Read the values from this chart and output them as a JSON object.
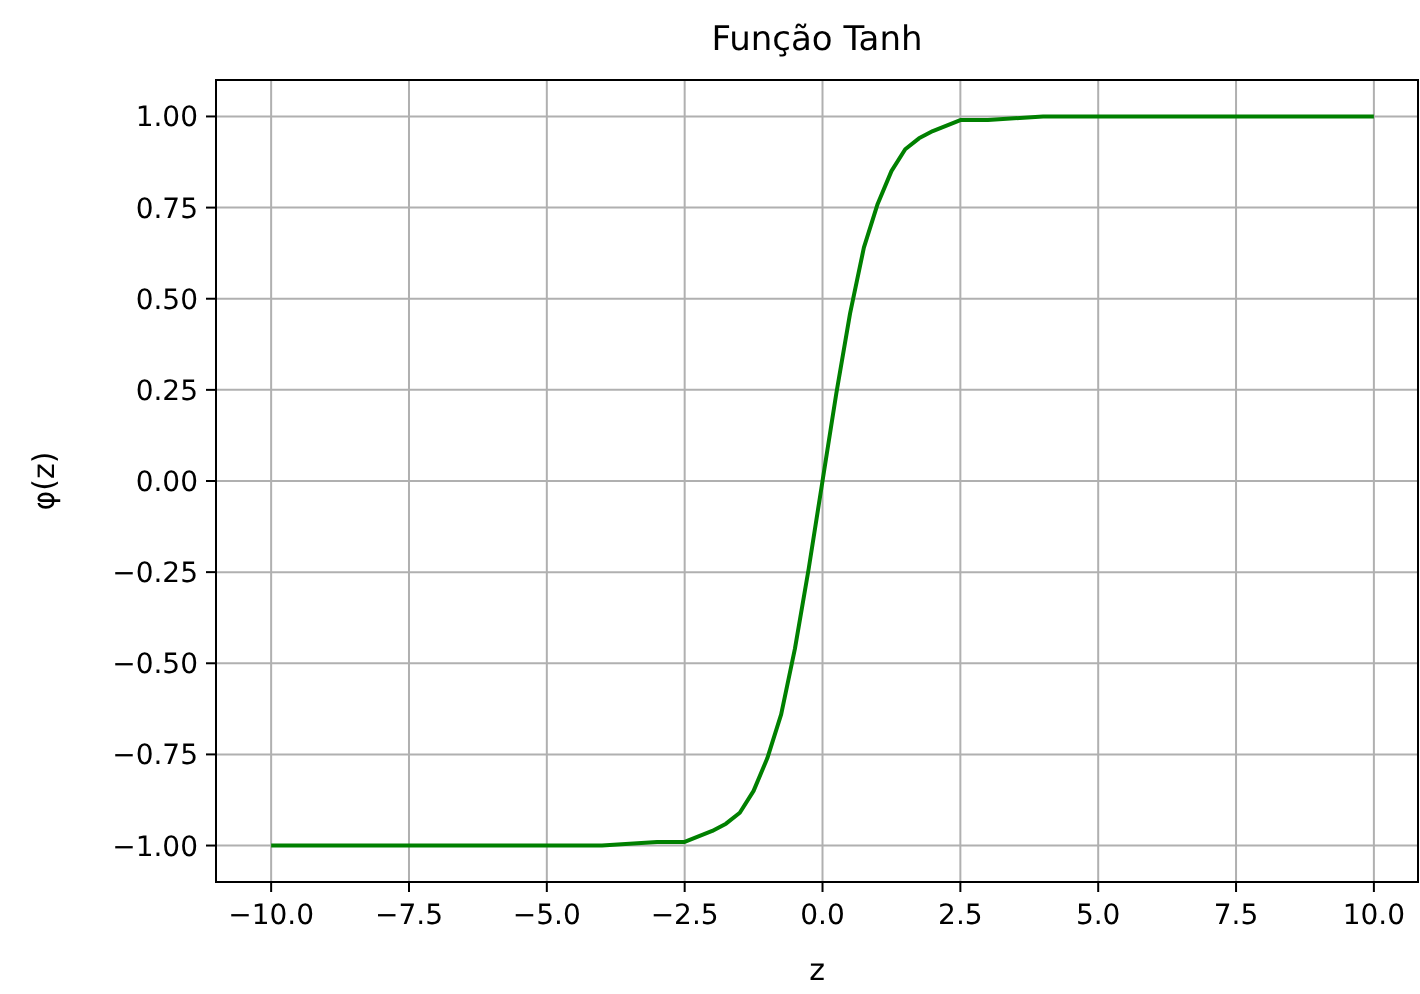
{
  "chart_data": {
    "type": "line",
    "title": "Função Tanh",
    "xlabel": "z",
    "ylabel": "φ(z)",
    "x": [
      -10,
      -7.5,
      -5,
      -4,
      -3,
      -2.5,
      -2,
      -1.75,
      -1.5,
      -1.25,
      -1,
      -0.75,
      -0.5,
      -0.25,
      0,
      0.25,
      0.5,
      0.75,
      1,
      1.25,
      1.5,
      1.75,
      2,
      2.5,
      3,
      4,
      5,
      7.5,
      10
    ],
    "series": [
      {
        "color": "#008000",
        "values": [
          -1,
          -1,
          -1,
          -1,
          -0.99,
          -0.99,
          -0.96,
          -0.94,
          -0.91,
          -0.85,
          -0.76,
          -0.64,
          -0.46,
          -0.24,
          0,
          0.24,
          0.46,
          0.64,
          0.76,
          0.85,
          0.91,
          0.94,
          0.96,
          0.99,
          0.99,
          1,
          1,
          1,
          1
        ]
      }
    ],
    "xlim": [
      -11,
      10.8
    ],
    "ylim": [
      -1.1,
      1.1
    ],
    "xticks": [
      {
        "value": -10,
        "label": "−10.0"
      },
      {
        "value": -7.5,
        "label": "−7.5"
      },
      {
        "value": -5,
        "label": "−5.0"
      },
      {
        "value": -2.5,
        "label": "−2.5"
      },
      {
        "value": 0,
        "label": "0.0"
      },
      {
        "value": 2.5,
        "label": "2.5"
      },
      {
        "value": 5,
        "label": "5.0"
      },
      {
        "value": 7.5,
        "label": "7.5"
      },
      {
        "value": 10,
        "label": "10.0"
      }
    ],
    "yticks": [
      {
        "value": -1,
        "label": "−1.00"
      },
      {
        "value": -0.75,
        "label": "−0.75"
      },
      {
        "value": -0.5,
        "label": "−0.50"
      },
      {
        "value": -0.25,
        "label": "−0.25"
      },
      {
        "value": 0,
        "label": "0.00"
      },
      {
        "value": 0.25,
        "label": "0.25"
      },
      {
        "value": 0.5,
        "label": "0.50"
      },
      {
        "value": 0.75,
        "label": "0.75"
      },
      {
        "value": 1,
        "label": "1.00"
      }
    ],
    "grid": true,
    "marker": "none",
    "line_style": "solid"
  }
}
